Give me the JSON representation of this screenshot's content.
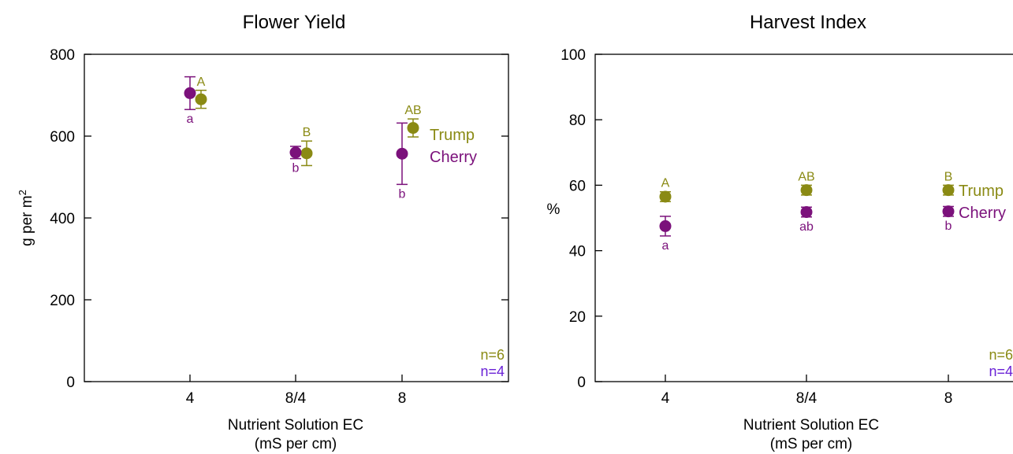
{
  "figure": {
    "trump_color": "#8a8a14",
    "cherry_color": "#7b117b",
    "n_cherry_color": "#6a22d6",
    "axis_color": "#000000"
  },
  "chart_data": [
    {
      "type": "scatter",
      "title": "Flower Yield",
      "xlabel": "Nutrient Solution EC",
      "xlabel_sub": "(mS per cm)",
      "ylabel_main": "g per m",
      "ylabel_sup": "2",
      "categories": [
        "4",
        "8/4",
        "8"
      ],
      "ylim": [
        0,
        800
      ],
      "yticks": [
        0,
        200,
        400,
        600,
        800
      ],
      "grid": false,
      "legend_placement": "right, beside the 8 EC points",
      "n_labels": {
        "trump": "n=6",
        "cherry": "n=4"
      },
      "series": [
        {
          "name": "Trump",
          "values": [
            690,
            558,
            620
          ],
          "err": [
            22,
            30,
            22
          ],
          "letters": [
            "A",
            "B",
            "AB"
          ]
        },
        {
          "name": "Cherry",
          "values": [
            705,
            560,
            557
          ],
          "err": [
            40,
            15,
            75
          ],
          "letters": [
            "a",
            "b",
            "b"
          ]
        }
      ]
    },
    {
      "type": "scatter",
      "title": "Harvest Index",
      "xlabel": "Nutrient Solution EC",
      "xlabel_sub": "(mS per cm)",
      "ylabel_main": "%",
      "ylabel_sup": "",
      "categories": [
        "4",
        "8/4",
        "8"
      ],
      "ylim": [
        0,
        100
      ],
      "yticks": [
        0,
        20,
        40,
        60,
        80,
        100
      ],
      "grid": false,
      "legend_placement": "right, beside the 8 EC points",
      "n_labels": {
        "trump": "n=6",
        "cherry": "n=4"
      },
      "series": [
        {
          "name": "Trump",
          "values": [
            56.5,
            58.5,
            58.5
          ],
          "err": [
            1.5,
            1.5,
            1.5
          ],
          "letters": [
            "A",
            "AB",
            "B"
          ]
        },
        {
          "name": "Cherry",
          "values": [
            47.5,
            51.8,
            52.0
          ],
          "err": [
            3.0,
            1.5,
            1.5
          ],
          "letters": [
            "a",
            "ab",
            "b"
          ]
        }
      ]
    }
  ]
}
